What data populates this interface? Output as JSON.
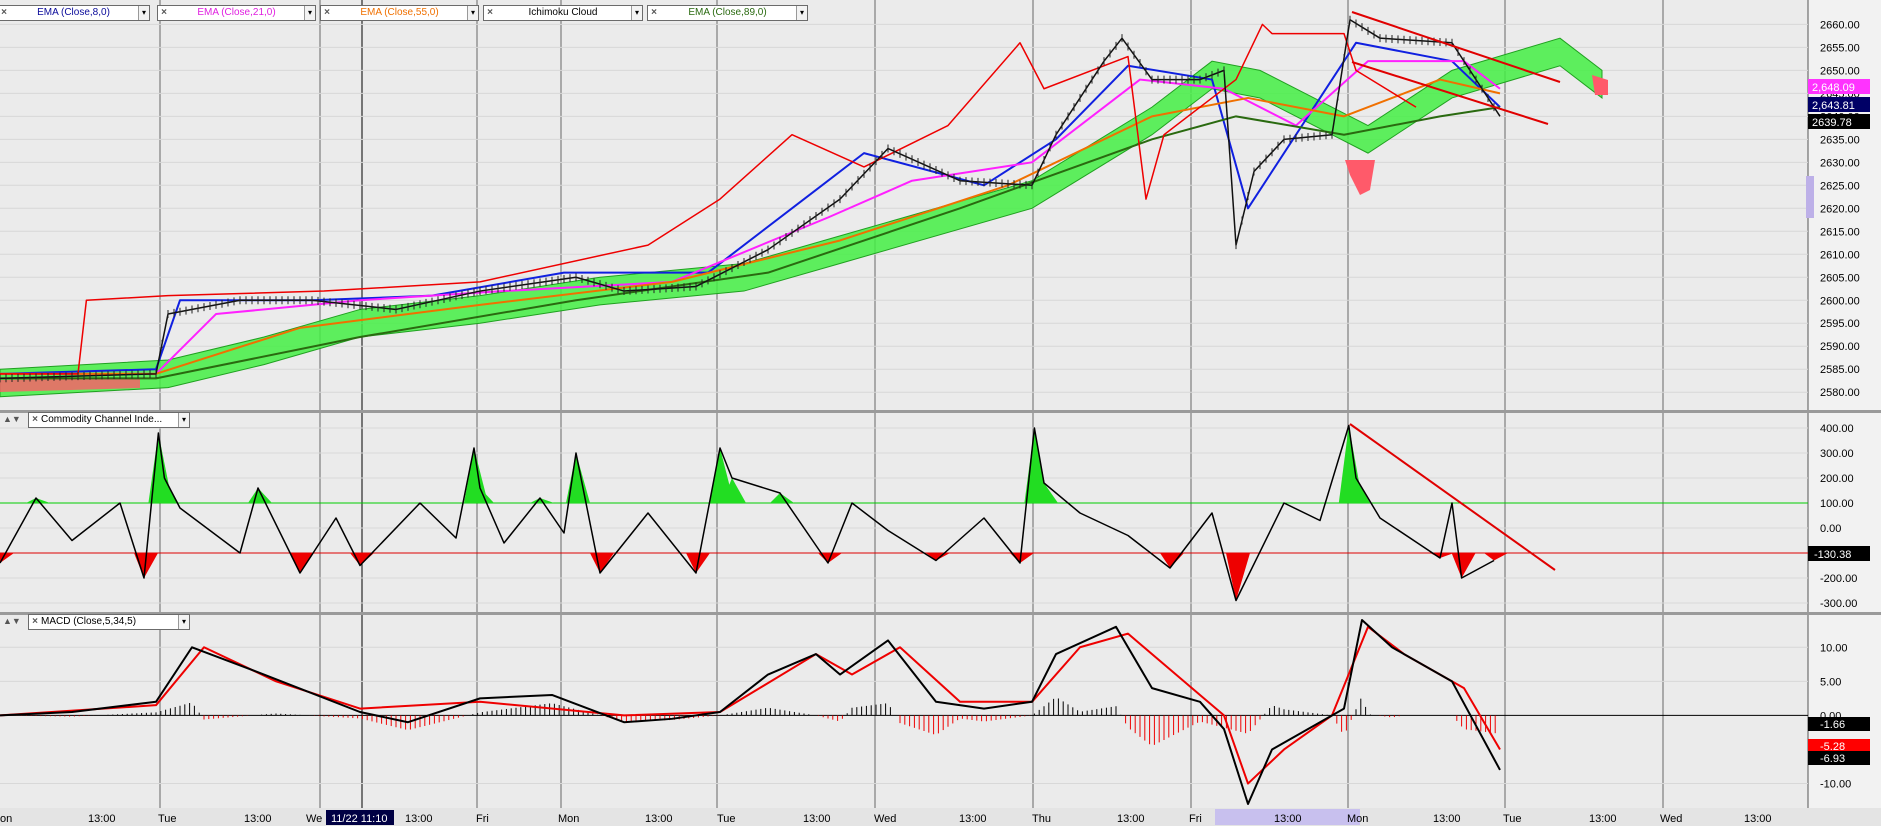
{
  "indicators_top": [
    {
      "label": "EMA (Close,8,0)",
      "color": "#0a0a9a"
    },
    {
      "label": "EMA (Close,21,0)",
      "color": "#e020e0"
    },
    {
      "label": "EMA (Close,55,0)",
      "color": "#f07000"
    },
    {
      "label": "Ichimoku Cloud",
      "color": "#000000"
    },
    {
      "label": "EMA (Close,89,0)",
      "color": "#2a6a10"
    }
  ],
  "cci_label": "Commodity Channel Inde...",
  "macd_label": "MACD (Close,5,34,5)",
  "price_ticks": [
    "2660.00",
    "2655.00",
    "2650.00",
    "2645.00",
    "2640.00",
    "2635.00",
    "2630.00",
    "2625.00",
    "2620.00",
    "2615.00",
    "2610.00",
    "2605.00",
    "2600.00",
    "2595.00",
    "2590.00",
    "2585.00",
    "2580.00"
  ],
  "price_badges": [
    {
      "text": "2,648.09",
      "bg": "#ff33ff",
      "fg": "#ffffff"
    },
    {
      "text": "2,643.81",
      "bg": "#000066",
      "fg": "#ffffff"
    },
    {
      "text": "2639.78",
      "bg": "#000000",
      "fg": "#ffffff"
    }
  ],
  "cci_ticks": [
    "400.00",
    "300.00",
    "200.00",
    "100.00",
    "0.00",
    "-200.00",
    "-300.00"
  ],
  "cci_badge": {
    "text": "-130.38",
    "bg": "#000000",
    "fg": "#ffffff"
  },
  "macd_ticks": [
    "10.00",
    "5.00",
    "0.00",
    "-10.00"
  ],
  "macd_badges": [
    {
      "text": "-1.66",
      "bg": "#000000",
      "fg": "#ffffff"
    },
    {
      "text": "-5.28",
      "bg": "#ff0000",
      "fg": "#ffffff"
    },
    {
      "text": "-6.93",
      "bg": "#000000",
      "fg": "#ffffff"
    }
  ],
  "time_labels": [
    "on",
    "13:00",
    "Tue",
    "13:00",
    "We",
    "11/22 11:10",
    "13:00",
    "Fri",
    "Mon",
    "13:00",
    "Tue",
    "13:00",
    "Wed",
    "13:00",
    "Thu",
    "13:00",
    "Fri",
    "13:00",
    "Mon",
    "13:00",
    "Tue",
    "13:00",
    "Wed",
    "13:00"
  ],
  "chart_data": [
    {
      "type": "line",
      "title": "",
      "ylim": [
        2577,
        2664
      ],
      "series": [
        {
          "name": "EMA (Close,8,0)",
          "x": [
            0,
            130,
            150,
            260,
            360,
            470,
            590,
            680,
            720,
            820,
            880,
            940,
            1010,
            1040,
            1130,
            1210,
            1250
          ],
          "values": [
            2584,
            2585,
            2600,
            2600,
            2601,
            2606,
            2606,
            2624,
            2632,
            2625,
            2635,
            2651,
            2648,
            2620,
            2656,
            2652,
            2642
          ]
        },
        {
          "name": "EMA (Close,21,0)",
          "x": [
            0,
            130,
            180,
            300,
            420,
            560,
            690,
            760,
            860,
            950,
            1020,
            1080,
            1140,
            1220,
            1250
          ],
          "values": [
            2584,
            2584,
            2597,
            2600,
            2602,
            2604,
            2618,
            2626,
            2630,
            2648,
            2646,
            2638,
            2652,
            2652,
            2646
          ]
        },
        {
          "name": "EMA (Close,55,0)",
          "x": [
            0,
            130,
            250,
            400,
            560,
            700,
            840,
            960,
            1040,
            1120,
            1200,
            1250
          ],
          "values": [
            2584,
            2584,
            2594,
            2599,
            2604,
            2613,
            2625,
            2640,
            2644,
            2640,
            2648,
            2645
          ]
        },
        {
          "name": "EMA (Close,89,0)",
          "x": [
            0,
            130,
            300,
            480,
            640,
            800,
            960,
            1030,
            1120,
            1200,
            1250
          ],
          "values": [
            2583,
            2583,
            2592,
            2600,
            2606,
            2620,
            2635,
            2640,
            2636,
            2640,
            2642
          ]
        },
        {
          "name": "Ichimoku lagging",
          "x": [
            0,
            65,
            72,
            140,
            270,
            400,
            540,
            600,
            660,
            720,
            790,
            850,
            870,
            940,
            955,
            970,
            1030,
            1052,
            1060,
            1120,
            1130,
            1180
          ],
          "values": [
            2584,
            2584,
            2600,
            2601,
            2602,
            2604,
            2612,
            2622,
            2636,
            2629,
            2638,
            2656,
            2646,
            2653,
            2622,
            2636,
            2648,
            2660,
            2658,
            2658,
            2650,
            2642
          ]
        },
        {
          "name": "Ichimoku cloud",
          "x": [
            0,
            140,
            220,
            300,
            400,
            500,
            620,
            700,
            860,
            960,
            1010,
            1050,
            1110,
            1140,
            1210,
            1300,
            1335
          ],
          "values": [
            2583,
            2585,
            2590,
            2596,
            2599,
            2603,
            2606,
            2612,
            2624,
            2640,
            2650,
            2648,
            2640,
            2636,
            2648,
            2655,
            2648
          ]
        },
        {
          "name": "Price",
          "x": [
            0,
            130,
            140,
            200,
            260,
            330,
            400,
            480,
            520,
            580,
            640,
            700,
            740,
            800,
            860,
            880,
            920,
            935,
            960,
            1000,
            1020,
            1030,
            1045,
            1070,
            1110,
            1125,
            1150,
            1210,
            1235,
            1250
          ],
          "values": [
            2583,
            2584,
            2597,
            2600,
            2600,
            2598,
            2602,
            2605,
            2602,
            2603,
            2611,
            2622,
            2633,
            2626,
            2625,
            2636,
            2652,
            2657,
            2648,
            2648,
            2650,
            2612,
            2628,
            2635,
            2636,
            2661,
            2657,
            2656,
            2646,
            2640
          ]
        }
      ]
    },
    {
      "type": "line",
      "title": "",
      "ylim": [
        -320,
        440
      ],
      "series": [
        {
          "name": "Commodity Channel Index",
          "x": [
            0,
            30,
            60,
            100,
            120,
            132,
            137,
            150,
            200,
            215,
            250,
            280,
            300,
            350,
            380,
            395,
            400,
            420,
            450,
            470,
            480,
            500,
            540,
            580,
            600,
            610,
            650,
            690,
            710,
            740,
            780,
            820,
            850,
            862,
            870,
            900,
            940,
            975,
            1010,
            1030,
            1070,
            1100,
            1124,
            1130,
            1150,
            1200,
            1210,
            1218,
            1245
          ],
          "values": [
            -140,
            120,
            -50,
            100,
            -200,
            380,
            200,
            80,
            -100,
            160,
            -180,
            40,
            -150,
            100,
            -40,
            320,
            160,
            -60,
            120,
            -20,
            300,
            -180,
            60,
            -180,
            320,
            200,
            140,
            -140,
            100,
            -10,
            -130,
            40,
            -140,
            400,
            180,
            60,
            -30,
            -160,
            60,
            -290,
            100,
            30,
            410,
            200,
            40,
            -120,
            100,
            -200,
            -130
          ]
        }
      ],
      "reference_lines": [
        100,
        -100
      ]
    },
    {
      "type": "line",
      "title": "",
      "ylim": [
        -13,
        14
      ],
      "series": [
        {
          "name": "MACD",
          "x": [
            0,
            60,
            130,
            160,
            220,
            300,
            340,
            400,
            460,
            520,
            560,
            600,
            640,
            680,
            700,
            740,
            780,
            820,
            860,
            880,
            930,
            960,
            1000,
            1020,
            1040,
            1060,
            1100,
            1120,
            1135,
            1160,
            1210,
            1250
          ],
          "values": [
            0,
            0.5,
            2,
            10,
            6,
            0.5,
            -1,
            2.5,
            3,
            -1,
            -0.5,
            0.5,
            6,
            9,
            6,
            11,
            2,
            1,
            2,
            9,
            13,
            4,
            2,
            -2,
            -13,
            -5,
            -1,
            1,
            14,
            10,
            5,
            -8
          ]
        },
        {
          "name": "Signal",
          "x": [
            0,
            130,
            170,
            230,
            300,
            400,
            520,
            600,
            680,
            710,
            750,
            800,
            860,
            900,
            940,
            1000,
            1020,
            1040,
            1070,
            1110,
            1140,
            1170,
            1220,
            1250
          ],
          "values": [
            0,
            1.5,
            10,
            5,
            1,
            2,
            0,
            0.5,
            9,
            6,
            10,
            2,
            2,
            10,
            12,
            3,
            0,
            -10,
            -5,
            0,
            13,
            9,
            4,
            -5
          ]
        }
      ]
    }
  ]
}
